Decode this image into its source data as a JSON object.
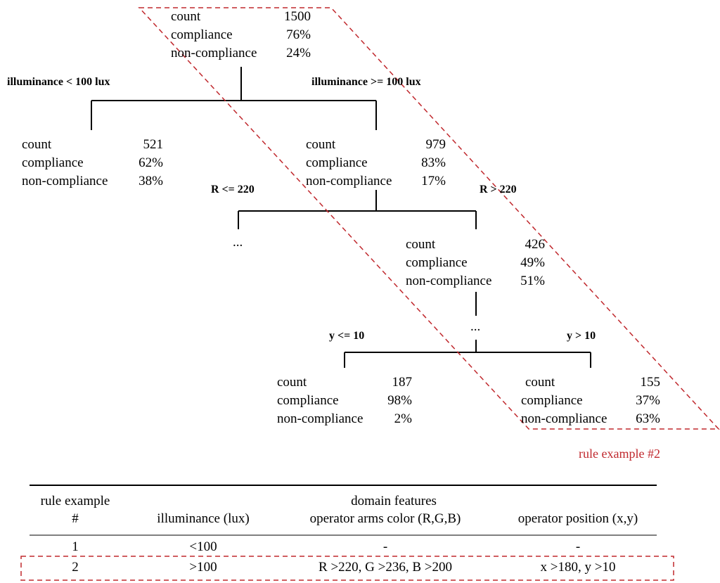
{
  "nodes": {
    "root": [
      {
        "label": "count",
        "value": "1500"
      },
      {
        "label": "compliance",
        "value": "76%"
      },
      {
        "label": "non-compliance",
        "value": "24%"
      }
    ],
    "left": [
      {
        "label": "count",
        "value": "521"
      },
      {
        "label": "compliance",
        "value": "62%"
      },
      {
        "label": "non-compliance",
        "value": "38%"
      }
    ],
    "right": [
      {
        "label": "count",
        "value": "979"
      },
      {
        "label": "compliance",
        "value": "83%"
      },
      {
        "label": "non-compliance",
        "value": "17%"
      }
    ],
    "r_gt": [
      {
        "label": "count",
        "value": "426"
      },
      {
        "label": "compliance",
        "value": "49%"
      },
      {
        "label": "non-compliance",
        "value": "51%"
      }
    ],
    "y_le": [
      {
        "label": "count",
        "value": "187"
      },
      {
        "label": "compliance",
        "value": "98%"
      },
      {
        "label": "non-compliance",
        "value": "2%"
      }
    ],
    "y_gt": [
      {
        "label": "count",
        "value": "155"
      },
      {
        "label": "compliance",
        "value": "37%"
      },
      {
        "label": "non-compliance",
        "value": "63%"
      }
    ]
  },
  "edges": {
    "illum_lt": "illuminance < 100 lux",
    "illum_ge": "illuminance >= 100 lux",
    "r_le": "R <= 220",
    "r_gt": "R > 220",
    "y_le": "y <= 10",
    "y_gt": "y > 10"
  },
  "ellipsis": "...",
  "rule_label": "rule example #2",
  "colors": {
    "highlight": "#c0282d",
    "line": "#000000"
  },
  "table": {
    "header": {
      "rule_col": [
        "rule example",
        "#"
      ],
      "group": "domain features",
      "illuminance": "illuminance (lux)",
      "arms_color": "operator arms color (R,G,B)",
      "position": "operator position (x,y)"
    },
    "rows": [
      {
        "rule": "1",
        "illuminance": "<100",
        "arms_color": "-",
        "position": "-"
      },
      {
        "rule": "2",
        "illuminance": ">100",
        "arms_color": "R >220, G >236, B >200",
        "position": "x >180, y >10"
      }
    ]
  }
}
